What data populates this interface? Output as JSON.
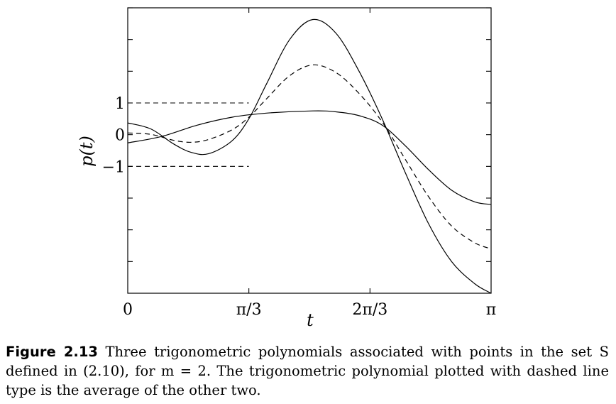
{
  "chart_data": {
    "type": "line",
    "xlabel": "t",
    "ylabel": "p(t)",
    "x_ticks": [
      {
        "value": 0,
        "label": "0"
      },
      {
        "value": 1.0472,
        "label": "π/3"
      },
      {
        "value": 2.0944,
        "label": "2π/3"
      },
      {
        "value": 3.14159,
        "label": "π"
      }
    ],
    "y_ticks_labeled": [
      {
        "value": 1,
        "label": "1"
      },
      {
        "value": 0,
        "label": "0"
      },
      {
        "value": -1,
        "label": "−1"
      }
    ],
    "y_ticks_unlabeled": [
      -4,
      -3,
      -2,
      2,
      3,
      4
    ],
    "xlim": [
      0,
      3.14159
    ],
    "ylim": [
      -5,
      4
    ],
    "grid": false,
    "series": [
      {
        "style": "solid",
        "points": [
          [
            0,
            0.37
          ],
          [
            0.2,
            0.18
          ],
          [
            0.4,
            -0.3
          ],
          [
            0.55,
            -0.56
          ],
          [
            0.7,
            -0.6
          ],
          [
            0.9,
            -0.2
          ],
          [
            1.0472,
            0.5
          ],
          [
            1.2,
            1.6
          ],
          [
            1.4,
            3.0
          ],
          [
            1.6,
            3.63
          ],
          [
            1.8,
            3.2
          ],
          [
            2.0,
            2.0
          ],
          [
            2.2,
            0.5
          ],
          [
            2.4,
            -1.2
          ],
          [
            2.6,
            -2.8
          ],
          [
            2.8,
            -4.0
          ],
          [
            3.0,
            -4.7
          ],
          [
            3.14159,
            -5.0
          ]
        ]
      },
      {
        "style": "solid",
        "points": [
          [
            0,
            -0.26
          ],
          [
            0.3,
            -0.05
          ],
          [
            0.6,
            0.3
          ],
          [
            0.9,
            0.55
          ],
          [
            1.2,
            0.68
          ],
          [
            1.6,
            0.75
          ],
          [
            1.8,
            0.72
          ],
          [
            2.0,
            0.6
          ],
          [
            2.2,
            0.3
          ],
          [
            2.4,
            -0.35
          ],
          [
            2.6,
            -1.1
          ],
          [
            2.8,
            -1.75
          ],
          [
            3.0,
            -2.12
          ],
          [
            3.14159,
            -2.2
          ]
        ]
      },
      {
        "style": "dashed",
        "points": [
          [
            0,
            0.055
          ],
          [
            0.2,
            0.01
          ],
          [
            0.4,
            -0.18
          ],
          [
            0.55,
            -0.24
          ],
          [
            0.7,
            -0.15
          ],
          [
            0.9,
            0.15
          ],
          [
            1.0472,
            0.55
          ],
          [
            1.2,
            1.13
          ],
          [
            1.4,
            1.86
          ],
          [
            1.6,
            2.2
          ],
          [
            1.8,
            1.96
          ],
          [
            2.0,
            1.3
          ],
          [
            2.2,
            0.4
          ],
          [
            2.4,
            -0.78
          ],
          [
            2.6,
            -1.95
          ],
          [
            2.8,
            -2.88
          ],
          [
            3.0,
            -3.41
          ],
          [
            3.14159,
            -3.6
          ]
        ]
      }
    ],
    "annotations": [
      {
        "style": "dashed",
        "y": 1,
        "x_range": [
          0,
          1.0472
        ]
      },
      {
        "style": "dashed",
        "y": -1,
        "x_range": [
          0,
          1.0472
        ]
      }
    ]
  },
  "caption": {
    "label": "Figure 2.13",
    "text": "Three trigonometric polynomials associated with points in the set S defined in (2.10), for m = 2. The trigonometric polynomial plotted with dashed line type is the average of the other two."
  }
}
